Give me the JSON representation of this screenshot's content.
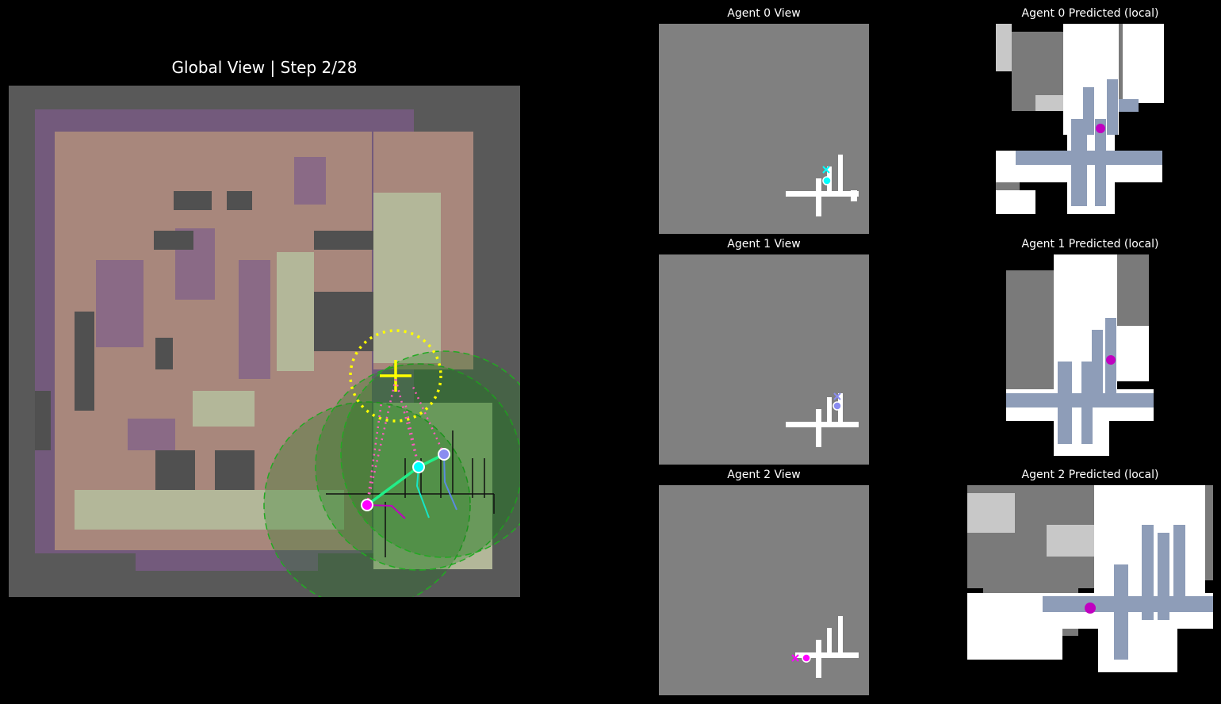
{
  "global": {
    "title": "Global View | Step 2/28"
  },
  "agent_views": [
    {
      "title": "Agent 0 View",
      "marker_color": "#00ffff"
    },
    {
      "title": "Agent 1 View",
      "marker_color": "#8a8cf0"
    },
    {
      "title": "Agent 2 View",
      "marker_color": "#ff00ff"
    }
  ],
  "predicted_views": [
    {
      "title": "Agent 0 Predicted (local)"
    },
    {
      "title": "Agent 1 Predicted (local)"
    },
    {
      "title": "Agent 2 Predicted (local)"
    }
  ],
  "colors": {
    "background": "#000000",
    "map_background": "#595959",
    "agent_0": "#00ffff",
    "agent_1": "#8a8cf0",
    "agent_2": "#ff00ff",
    "goal": "#ffff00",
    "comm_range": "#22aa22",
    "predicted_agent": "#c000c0"
  }
}
